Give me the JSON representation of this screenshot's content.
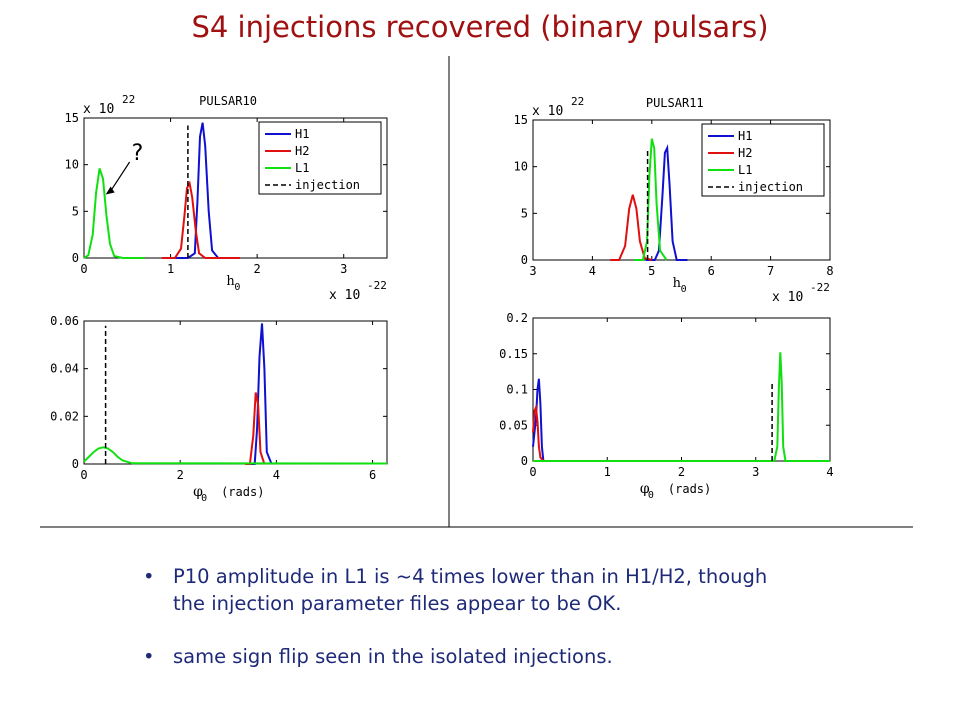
{
  "slide_title": "S4 injections recovered (binary pulsars)",
  "bullets": [
    {
      "line1": "P10 amplitude in L1 is ~4 times lower than in H1/H2, though",
      "line2": "the injection parameter files appear to be OK."
    },
    {
      "line1": "same sign flip seen in the isolated injections.",
      "line2": ""
    }
  ],
  "colors": {
    "title": "#a01010",
    "bullet_text": "#1e2a78",
    "H1": "#1010d0",
    "H2": "#e01010",
    "L1": "#10e010",
    "injection": "#000000"
  },
  "chart_data": [
    {
      "id": "p10_h0",
      "type": "line",
      "title": "PULSAR10",
      "xlabel": "h",
      "xlabel_sub": "0",
      "x_multiplier_base": "x 10",
      "x_multiplier_exp": "-22",
      "y_multiplier_base": "x 10",
      "y_multiplier_exp": "22",
      "xlim": [
        0,
        3.5
      ],
      "ylim": [
        0,
        15
      ],
      "xticks": [
        0,
        1,
        2,
        3
      ],
      "xtick_labels": [
        "0",
        "1",
        "2",
        "3"
      ],
      "yticks": [
        0,
        5,
        10,
        15
      ],
      "ytick_labels": [
        "0",
        "5",
        "10",
        "15"
      ],
      "legend": {
        "placement": "top-right",
        "entries": [
          "H1",
          "H2",
          "L1",
          "injection"
        ]
      },
      "annotation": "?",
      "series": [
        {
          "name": "H1",
          "x": [
            0.9,
            1.2,
            1.28,
            1.31,
            1.34,
            1.37,
            1.4,
            1.44,
            1.48,
            1.55,
            1.8
          ],
          "y": [
            0,
            0,
            0.5,
            6,
            13,
            14.5,
            12,
            5,
            0.8,
            0,
            0
          ]
        },
        {
          "name": "H2",
          "x": [
            0.9,
            1.05,
            1.12,
            1.16,
            1.19,
            1.22,
            1.25,
            1.29,
            1.33,
            1.4,
            1.8
          ],
          "y": [
            0,
            0,
            1,
            4.5,
            7.5,
            8,
            6.5,
            3,
            0.5,
            0,
            0
          ]
        },
        {
          "name": "L1",
          "x": [
            0,
            0.05,
            0.1,
            0.14,
            0.18,
            0.22,
            0.26,
            0.3,
            0.35,
            0.45,
            0.7
          ],
          "y": [
            0,
            0.3,
            2.5,
            7,
            9.6,
            8.5,
            4.5,
            1.5,
            0.2,
            0,
            0
          ]
        },
        {
          "name": "injection",
          "x": [
            1.2,
            1.2
          ],
          "y": [
            0,
            14.2
          ]
        }
      ]
    },
    {
      "id": "p10_phi0",
      "type": "line",
      "title": "",
      "xlabel": "φ",
      "xlabel_sub": "0",
      "xlabel_unit": "(rads)",
      "xlim": [
        0,
        6.3
      ],
      "ylim": [
        0,
        0.06
      ],
      "xticks": [
        0,
        2,
        4,
        6
      ],
      "xtick_labels": [
        "0",
        "2",
        "4",
        "6"
      ],
      "yticks": [
        0,
        0.02,
        0.04,
        0.06
      ],
      "ytick_labels": [
        "0",
        "0.02",
        "0.04",
        "0.06"
      ],
      "series": [
        {
          "name": "H1",
          "x": [
            3.4,
            3.55,
            3.6,
            3.65,
            3.7,
            3.75,
            3.8,
            3.9
          ],
          "y": [
            0,
            0,
            0.015,
            0.045,
            0.059,
            0.04,
            0.005,
            0
          ]
        },
        {
          "name": "H2",
          "x": [
            3.35,
            3.45,
            3.52,
            3.57,
            3.62,
            3.67,
            3.75
          ],
          "y": [
            0,
            0,
            0.012,
            0.03,
            0.025,
            0.005,
            0
          ]
        },
        {
          "name": "L1",
          "x": [
            0,
            0.1,
            0.2,
            0.3,
            0.4,
            0.5,
            0.6,
            0.7,
            0.8,
            1.0,
            6.3
          ],
          "y": [
            0.001,
            0.003,
            0.005,
            0.0065,
            0.007,
            0.0065,
            0.005,
            0.003,
            0.0015,
            0.0003,
            0.0002
          ]
        },
        {
          "name": "injection",
          "x": [
            0.45,
            0.45
          ],
          "y": [
            0,
            0.058
          ]
        }
      ]
    },
    {
      "id": "p11_h0",
      "type": "line",
      "title": "PULSAR11",
      "xlabel": "h",
      "xlabel_sub": "0",
      "x_multiplier_base": "x 10",
      "x_multiplier_exp": "-22",
      "y_multiplier_base": "x 10",
      "y_multiplier_exp": "22",
      "xlim": [
        3,
        8
      ],
      "ylim": [
        0,
        15
      ],
      "xticks": [
        3,
        4,
        5,
        6,
        7,
        8
      ],
      "xtick_labels": [
        "3",
        "4",
        "5",
        "6",
        "7",
        "8"
      ],
      "yticks": [
        0,
        5,
        10,
        15
      ],
      "ytick_labels": [
        "0",
        "5",
        "10",
        "15"
      ],
      "legend": {
        "placement": "top-right",
        "entries": [
          "H1",
          "H2",
          "L1",
          "injection"
        ]
      },
      "series": [
        {
          "name": "H1",
          "x": [
            4.9,
            5.05,
            5.12,
            5.18,
            5.22,
            5.26,
            5.3,
            5.35,
            5.42,
            5.6
          ],
          "y": [
            0,
            0,
            1,
            7,
            11.5,
            12,
            8,
            2,
            0,
            0
          ]
        },
        {
          "name": "H2",
          "x": [
            4.3,
            4.45,
            4.55,
            4.62,
            4.68,
            4.74,
            4.8,
            4.88,
            5.0
          ],
          "y": [
            0,
            0,
            1.5,
            5.5,
            7,
            5.5,
            2,
            0.2,
            0
          ]
        },
        {
          "name": "L1",
          "x": [
            4.7,
            4.85,
            4.92,
            4.96,
            5.0,
            5.04,
            5.08,
            5.14,
            5.25
          ],
          "y": [
            0,
            0,
            2,
            9,
            13,
            12,
            6,
            1,
            0
          ]
        },
        {
          "name": "injection",
          "x": [
            4.93,
            4.93
          ],
          "y": [
            0,
            12
          ]
        }
      ]
    },
    {
      "id": "p11_phi0",
      "type": "line",
      "title": "",
      "xlabel": "φ",
      "xlabel_sub": "0",
      "xlabel_unit": "(rads)",
      "xlim": [
        0,
        4
      ],
      "ylim": [
        0,
        0.2
      ],
      "xticks": [
        0,
        1,
        2,
        3,
        4
      ],
      "xtick_labels": [
        "0",
        "1",
        "2",
        "3",
        "4"
      ],
      "yticks": [
        0,
        0.05,
        0.1,
        0.15,
        0.2
      ],
      "ytick_labels": [
        "0",
        "0.05",
        "0.1",
        "0.15",
        "0.2"
      ],
      "series": [
        {
          "name": "H1",
          "x": [
            0,
            0.04,
            0.06,
            0.08,
            0.1,
            0.12,
            0.14,
            0.2
          ],
          "y": [
            0.02,
            0.06,
            0.1,
            0.115,
            0.08,
            0.02,
            0,
            0
          ]
        },
        {
          "name": "H2",
          "x": [
            0,
            0.02,
            0.04,
            0.06,
            0.08,
            0.1,
            0.14,
            0.2
          ],
          "y": [
            0.04,
            0.07,
            0.075,
            0.055,
            0.02,
            0.005,
            0,
            0
          ]
        },
        {
          "name": "L1",
          "x": [
            0,
            3.25,
            3.29,
            3.31,
            3.33,
            3.35,
            3.37,
            3.4,
            4
          ],
          "y": [
            0,
            0,
            0.02,
            0.1,
            0.152,
            0.11,
            0.02,
            0,
            0
          ]
        },
        {
          "name": "injection",
          "x": [
            3.22,
            3.22
          ],
          "y": [
            0,
            0.11
          ]
        }
      ]
    }
  ]
}
